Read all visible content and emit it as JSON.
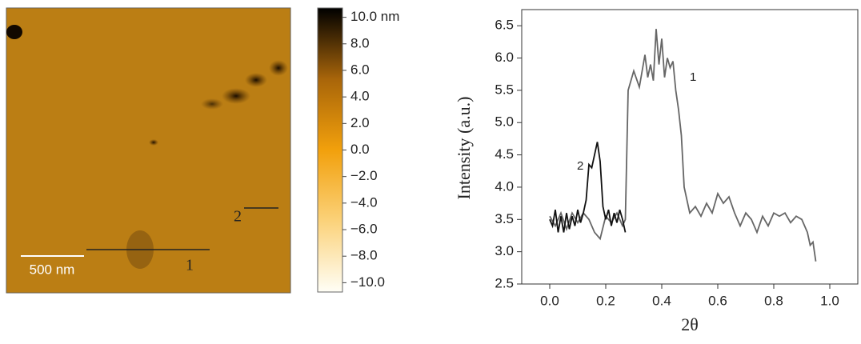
{
  "image": {
    "scale_bar": "500 nm",
    "profile_labels": [
      "1",
      "2"
    ]
  },
  "chart_data": [
    {
      "type": "colorbar",
      "ylim": [
        -10.7,
        10.7
      ],
      "colors": [
        "#fffef6",
        "#fbd27a",
        "#f2a00c",
        "#a8650a",
        "#000000"
      ],
      "yticks": [
        {
          "value": 10,
          "label": "10.0 nm"
        },
        {
          "value": 8,
          "label": "8.0"
        },
        {
          "value": 6,
          "label": "6.0"
        },
        {
          "value": 4,
          "label": "4.0"
        },
        {
          "value": 2,
          "label": "2.0"
        },
        {
          "value": 0,
          "label": "0.0"
        },
        {
          "value": -2,
          "label": "−2.0"
        },
        {
          "value": -4,
          "label": "−4.0"
        },
        {
          "value": -6,
          "label": "−6.0"
        },
        {
          "value": -8,
          "label": "−8.0"
        },
        {
          "value": -10,
          "label": "−10.0"
        }
      ]
    },
    {
      "type": "line",
      "x_label": "2θ",
      "y_label": "Intensity (a.u.)",
      "xlim": [
        -0.1,
        1.1
      ],
      "ylim": [
        2.5,
        6.75
      ],
      "xticks": [
        {
          "value": 0,
          "label": "0.0"
        },
        {
          "value": 0.2,
          "label": "0.2"
        },
        {
          "value": 0.4,
          "label": "0.4"
        },
        {
          "value": 0.6,
          "label": "0.6"
        },
        {
          "value": 0.8,
          "label": "0.8"
        },
        {
          "value": 1,
          "label": "1.0"
        }
      ],
      "yticks": [
        2.5,
        {
          "value": 3,
          "label": "3.0"
        },
        3.5,
        {
          "value": 4,
          "label": "4.0"
        },
        4.5,
        {
          "value": 5,
          "label": "5.0"
        },
        5.5,
        {
          "value": 6,
          "label": "6.0"
        },
        6.5
      ],
      "series": [
        {
          "name": "1",
          "color": "#666666",
          "x": [
            0,
            0.02,
            0.04,
            0.06,
            0.08,
            0.1,
            0.12,
            0.14,
            0.16,
            0.18,
            0.2,
            0.22,
            0.24,
            0.26,
            0.27,
            0.28,
            0.3,
            0.32,
            0.34,
            0.35,
            0.36,
            0.37,
            0.38,
            0.39,
            0.4,
            0.41,
            0.42,
            0.43,
            0.44,
            0.45,
            0.46,
            0.47,
            0.48,
            0.5,
            0.52,
            0.54,
            0.56,
            0.58,
            0.6,
            0.62,
            0.64,
            0.66,
            0.68,
            0.7,
            0.72,
            0.74,
            0.76,
            0.78,
            0.8,
            0.82,
            0.84,
            0.86,
            0.88,
            0.9,
            0.92,
            0.93,
            0.94,
            0.95
          ],
          "values": [
            3.55,
            3.4,
            3.6,
            3.35,
            3.6,
            3.45,
            3.6,
            3.5,
            3.3,
            3.2,
            3.55,
            3.45,
            3.6,
            3.4,
            3.5,
            5.5,
            5.8,
            5.55,
            6.05,
            5.7,
            5.9,
            5.65,
            6.45,
            5.9,
            6.3,
            5.7,
            6.0,
            5.85,
            5.95,
            5.5,
            5.2,
            4.8,
            4.0,
            3.6,
            3.7,
            3.55,
            3.75,
            3.6,
            3.9,
            3.75,
            3.85,
            3.6,
            3.4,
            3.6,
            3.5,
            3.3,
            3.55,
            3.4,
            3.6,
            3.55,
            3.6,
            3.45,
            3.55,
            3.5,
            3.3,
            3.1,
            3.15,
            2.85
          ]
        },
        {
          "name": "2",
          "color": "#111111",
          "x": [
            0,
            0.01,
            0.02,
            0.03,
            0.04,
            0.05,
            0.06,
            0.07,
            0.08,
            0.09,
            0.1,
            0.11,
            0.12,
            0.13,
            0.14,
            0.15,
            0.16,
            0.17,
            0.18,
            0.19,
            0.2,
            0.21,
            0.22,
            0.23,
            0.24,
            0.25,
            0.26,
            0.27
          ],
          "values": [
            3.5,
            3.4,
            3.65,
            3.3,
            3.55,
            3.3,
            3.6,
            3.35,
            3.55,
            3.4,
            3.65,
            3.45,
            3.6,
            3.8,
            4.35,
            4.3,
            4.5,
            4.7,
            4.4,
            3.7,
            3.5,
            3.65,
            3.4,
            3.6,
            3.45,
            3.65,
            3.5,
            3.3
          ]
        }
      ]
    }
  ]
}
